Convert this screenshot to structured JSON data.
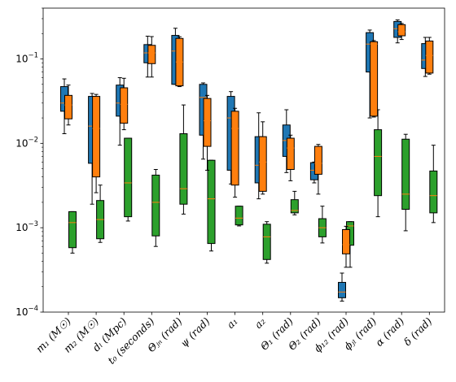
{
  "chart_data": {
    "type": "box",
    "y_scale": "log",
    "ylim": [
      0.0001,
      0.4
    ],
    "y_ticks": [
      {
        "value": 0.0001,
        "base": "10",
        "exp": "−4"
      },
      {
        "value": 0.001,
        "base": "10",
        "exp": "−3"
      },
      {
        "value": 0.01,
        "base": "10",
        "exp": "−2"
      },
      {
        "value": 0.1,
        "base": "10",
        "exp": "−1"
      }
    ],
    "grid": false,
    "categories": [
      {
        "label": "m₁ (M☉)"
      },
      {
        "label": "m₂ (M☉)"
      },
      {
        "label": "dₗ (Mpc)"
      },
      {
        "label": "t₀ (seconds)"
      },
      {
        "label": "Θⱼₙ (rad)"
      },
      {
        "label": "ψ (rad)"
      },
      {
        "label": "a₁"
      },
      {
        "label": "a₂"
      },
      {
        "label": "Θ₁ (rad)"
      },
      {
        "label": "Θ₂ (rad)"
      },
      {
        "label": "ϕ₁₂ (rad)"
      },
      {
        "label": "ϕⱼₗ (rad)"
      },
      {
        "label": "α (rad)"
      },
      {
        "label": "δ (rad)"
      }
    ],
    "series": [
      {
        "color": "#1f77b4",
        "median_color": "#ff7f0e",
        "boxes": [
          {
            "cat": 0,
            "whislo": 0.013,
            "q1": 0.024,
            "med": 0.03,
            "q3": 0.047,
            "whishi": 0.058
          },
          {
            "cat": 1,
            "whislo": 0.0019,
            "q1": 0.0058,
            "med": 0.016,
            "q3": 0.036,
            "whishi": 0.039
          },
          {
            "cat": 2,
            "whislo": 0.0095,
            "q1": 0.021,
            "med": 0.03,
            "q3": 0.049,
            "whishi": 0.06
          },
          {
            "cat": 3,
            "whislo": 0.061,
            "q1": 0.09,
            "med": 0.118,
            "q3": 0.148,
            "whishi": 0.186
          },
          {
            "cat": 4,
            "whislo": 0.05,
            "q1": 0.05,
            "med": 0.124,
            "q3": 0.19,
            "whishi": 0.231
          },
          {
            "cat": 5,
            "whislo": 0.0065,
            "q1": 0.0125,
            "med": 0.035,
            "q3": 0.05,
            "whishi": 0.052
          },
          {
            "cat": 6,
            "whislo": 0.0033,
            "q1": 0.0048,
            "med": 0.02,
            "q3": 0.036,
            "whishi": 0.041
          },
          {
            "cat": 7,
            "whislo": 0.0022,
            "q1": 0.0034,
            "med": 0.0055,
            "q3": 0.012,
            "whishi": 0.023
          },
          {
            "cat": 8,
            "whislo": 0.0045,
            "q1": 0.007,
            "med": 0.0108,
            "q3": 0.0165,
            "whishi": 0.025
          },
          {
            "cat": 9,
            "whislo": 0.0034,
            "q1": 0.0037,
            "med": 0.0048,
            "q3": 0.0059,
            "whishi": 0.006
          },
          {
            "cat": 10,
            "whislo": 0.000135,
            "q1": 0.000148,
            "med": 0.000173,
            "q3": 0.000225,
            "whishi": 0.00029
          },
          {
            "cat": 11,
            "whislo": 0.02,
            "q1": 0.07,
            "med": 0.15,
            "q3": 0.205,
            "whishi": 0.22
          },
          {
            "cat": 12,
            "whislo": 0.155,
            "q1": 0.18,
            "med": 0.228,
            "q3": 0.278,
            "whishi": 0.29
          },
          {
            "cat": 13,
            "whislo": 0.062,
            "q1": 0.077,
            "med": 0.097,
            "q3": 0.152,
            "whishi": 0.18
          }
        ]
      },
      {
        "color": "#ff7f0e",
        "median_color": "#ff7f0e",
        "boxes": [
          {
            "cat": 0,
            "whislo": 0.0165,
            "q1": 0.0195,
            "med": 0.0285,
            "q3": 0.037,
            "whishi": 0.049
          },
          {
            "cat": 1,
            "whislo": 0.0026,
            "q1": 0.004,
            "med": 0.015,
            "q3": 0.036,
            "whishi": 0.038
          },
          {
            "cat": 2,
            "whislo": 0.0145,
            "q1": 0.0173,
            "med": 0.029,
            "q3": 0.0455,
            "whishi": 0.059
          },
          {
            "cat": 3,
            "whislo": 0.061,
            "q1": 0.088,
            "med": 0.118,
            "q3": 0.145,
            "whishi": 0.184
          },
          {
            "cat": 4,
            "whislo": 0.047,
            "q1": 0.048,
            "med": 0.092,
            "q3": 0.175,
            "whishi": 0.183
          },
          {
            "cat": 5,
            "whislo": 0.0048,
            "q1": 0.0092,
            "med": 0.0185,
            "q3": 0.034,
            "whishi": 0.037
          },
          {
            "cat": 6,
            "whislo": 0.0023,
            "q1": 0.0032,
            "med": 0.015,
            "q3": 0.024,
            "whishi": 0.026
          },
          {
            "cat": 7,
            "whislo": 0.0025,
            "q1": 0.0027,
            "med": 0.006,
            "q3": 0.012,
            "whishi": 0.018
          },
          {
            "cat": 8,
            "whislo": 0.0036,
            "q1": 0.0049,
            "med": 0.0088,
            "q3": 0.0115,
            "whishi": 0.0125
          },
          {
            "cat": 9,
            "whislo": 0.0025,
            "q1": 0.0043,
            "med": 0.0058,
            "q3": 0.0092,
            "whishi": 0.0097
          },
          {
            "cat": 10,
            "whislo": 0.00034,
            "q1": 0.00049,
            "med": 0.00063,
            "q3": 0.00095,
            "whishi": 0.00104
          },
          {
            "cat": 11,
            "whislo": 0.0205,
            "q1": 0.021,
            "med": 0.15,
            "q3": 0.16,
            "whishi": 0.165
          },
          {
            "cat": 12,
            "whislo": 0.17,
            "q1": 0.188,
            "med": 0.21,
            "q3": 0.255,
            "whishi": 0.263
          },
          {
            "cat": 13,
            "whislo": 0.066,
            "q1": 0.068,
            "med": 0.11,
            "q3": 0.163,
            "whishi": 0.18
          }
        ]
      },
      {
        "color": "#2ca02c",
        "median_color": "#ff7f0e",
        "boxes": [
          {
            "cat": 0,
            "whislo": 0.0005,
            "q1": 0.00058,
            "med": 0.00115,
            "q3": 0.00155,
            "whishi": 0.00155
          },
          {
            "cat": 1,
            "whislo": 0.00067,
            "q1": 0.00074,
            "med": 0.00125,
            "q3": 0.0021,
            "whishi": 0.0032
          },
          {
            "cat": 2,
            "whislo": 0.0012,
            "q1": 0.00135,
            "med": 0.0034,
            "q3": 0.0115,
            "whishi": 0.0115
          },
          {
            "cat": 3,
            "whislo": 0.0006,
            "q1": 0.0008,
            "med": 0.002,
            "q3": 0.0042,
            "whishi": 0.0049
          },
          {
            "cat": 4,
            "whislo": 0.00145,
            "q1": 0.0019,
            "med": 0.0029,
            "q3": 0.013,
            "whishi": 0.0285
          },
          {
            "cat": 5,
            "whislo": 0.00053,
            "q1": 0.00065,
            "med": 0.0022,
            "q3": 0.0063,
            "whishi": 0.0063
          },
          {
            "cat": 6,
            "whislo": 0.00105,
            "q1": 0.00108,
            "med": 0.0013,
            "q3": 0.0018,
            "whishi": 0.0018
          },
          {
            "cat": 7,
            "whislo": 0.00038,
            "q1": 0.00042,
            "med": 0.00078,
            "q3": 0.0011,
            "whishi": 0.00118
          },
          {
            "cat": 8,
            "whislo": 0.00142,
            "q1": 0.0015,
            "med": 0.0016,
            "q3": 0.00215,
            "whishi": 0.0027
          },
          {
            "cat": 9,
            "whislo": 0.00066,
            "q1": 0.00078,
            "med": 0.001,
            "q3": 0.00128,
            "whishi": 0.0018
          },
          {
            "cat": 10,
            "whislo": 0.00034,
            "q1": 0.00062,
            "med": 0.00105,
            "q3": 0.00118,
            "whishi": 0.00118
          },
          {
            "cat": 11,
            "whislo": 0.00135,
            "q1": 0.0024,
            "med": 0.007,
            "q3": 0.0145,
            "whishi": 0.025
          },
          {
            "cat": 12,
            "whislo": 0.00092,
            "q1": 0.00165,
            "med": 0.0025,
            "q3": 0.0112,
            "whishi": 0.0128
          },
          {
            "cat": 13,
            "whislo": 0.00115,
            "q1": 0.0015,
            "med": 0.0024,
            "q3": 0.0047,
            "whishi": 0.0095
          }
        ]
      }
    ]
  }
}
